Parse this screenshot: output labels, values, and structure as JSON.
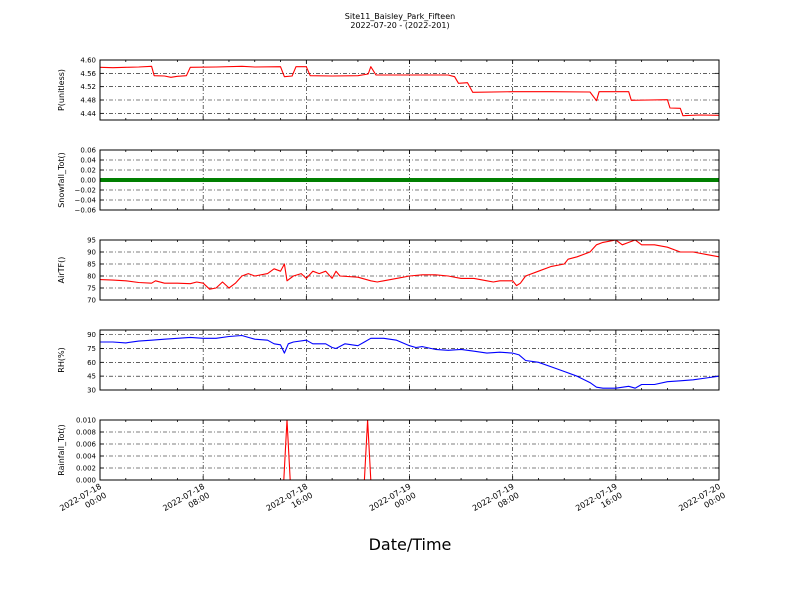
{
  "header": {
    "title": "Site11_Baisley_Park_Fifteen",
    "subtitle": "2022-07-20 - (2022-201)"
  },
  "xlabel": "Date/Time",
  "x_range": [
    "2022-07-18 00:00",
    "2022-07-20 00:00"
  ],
  "x_ticks": [
    {
      "line1": "2022-07-18",
      "line2": "00:00",
      "hour": 0
    },
    {
      "line1": "2022-07-18",
      "line2": "08:00",
      "hour": 8
    },
    {
      "line1": "2022-07-18",
      "line2": "16:00",
      "hour": 16
    },
    {
      "line1": "2022-07-19",
      "line2": "00:00",
      "hour": 24
    },
    {
      "line1": "2022-07-19",
      "line2": "08:00",
      "hour": 32
    },
    {
      "line1": "2022-07-19",
      "line2": "16:00",
      "hour": 40
    },
    {
      "line1": "2022-07-20",
      "line2": "00:00",
      "hour": 48
    }
  ],
  "chart_data": [
    {
      "type": "line",
      "ylabel": "P(unitless)",
      "ylim": [
        4.42,
        4.6
      ],
      "yticks": [
        "4.44",
        "4.48",
        "4.52",
        "4.56",
        "4.60"
      ],
      "ytick_values": [
        4.44,
        4.48,
        4.52,
        4.56,
        4.6
      ],
      "color": "#ff0000",
      "grid": true,
      "points": [
        [
          0,
          4.578
        ],
        [
          1,
          4.577
        ],
        [
          2,
          4.578
        ],
        [
          3,
          4.579
        ],
        [
          4,
          4.581
        ],
        [
          4.2,
          4.553
        ],
        [
          5,
          4.552
        ],
        [
          5.5,
          4.548
        ],
        [
          6,
          4.551
        ],
        [
          6.7,
          4.553
        ],
        [
          7,
          4.578
        ],
        [
          9,
          4.579
        ],
        [
          11,
          4.581
        ],
        [
          12,
          4.579
        ],
        [
          14,
          4.58
        ],
        [
          14.3,
          4.55
        ],
        [
          14.9,
          4.552
        ],
        [
          15.2,
          4.58
        ],
        [
          16,
          4.58
        ],
        [
          16.3,
          4.553
        ],
        [
          18,
          4.552
        ],
        [
          20,
          4.553
        ],
        [
          20.8,
          4.558
        ],
        [
          21,
          4.58
        ],
        [
          21.4,
          4.555
        ],
        [
          24,
          4.555
        ],
        [
          27,
          4.555
        ],
        [
          27.5,
          4.55
        ],
        [
          27.8,
          4.53
        ],
        [
          28.5,
          4.532
        ],
        [
          28.9,
          4.503
        ],
        [
          32,
          4.505
        ],
        [
          35,
          4.505
        ],
        [
          38,
          4.504
        ],
        [
          38.5,
          4.478
        ],
        [
          38.7,
          4.505
        ],
        [
          41,
          4.505
        ],
        [
          41.2,
          4.479
        ],
        [
          44,
          4.481
        ],
        [
          44.2,
          4.456
        ],
        [
          45,
          4.455
        ],
        [
          45.2,
          4.433
        ],
        [
          46.5,
          4.435
        ],
        [
          48,
          4.434
        ]
      ]
    },
    {
      "type": "scatter",
      "ylabel": "Snowfall_Tot()",
      "ylim": [
        -0.06,
        0.06
      ],
      "yticks": [
        "−0.06",
        "−0.04",
        "−0.02",
        "0.00",
        "0.02",
        "0.04",
        "0.06"
      ],
      "ytick_values": [
        -0.06,
        -0.04,
        -0.02,
        0.0,
        0.02,
        0.04,
        0.06
      ],
      "color": "#007f00",
      "grid": true,
      "points": [
        [
          0,
          0
        ],
        [
          48,
          0
        ]
      ]
    },
    {
      "type": "line",
      "ylabel": "AirTF()",
      "ylim": [
        70,
        95
      ],
      "yticks": [
        "70",
        "75",
        "80",
        "85",
        "90",
        "95"
      ],
      "ytick_values": [
        70,
        75,
        80,
        85,
        90,
        95
      ],
      "color": "#ff0000",
      "grid": true,
      "points": [
        [
          0,
          78.5
        ],
        [
          1,
          78.3
        ],
        [
          2,
          78
        ],
        [
          3,
          77.3
        ],
        [
          4,
          77
        ],
        [
          4.3,
          78
        ],
        [
          5,
          77
        ],
        [
          6,
          77
        ],
        [
          7,
          76.8
        ],
        [
          7.5,
          77.5
        ],
        [
          8,
          77
        ],
        [
          8.5,
          74.5
        ],
        [
          9,
          75
        ],
        [
          9.5,
          77.5
        ],
        [
          10,
          75
        ],
        [
          10.5,
          77
        ],
        [
          11,
          80
        ],
        [
          11.5,
          81
        ],
        [
          12,
          80
        ],
        [
          13,
          81
        ],
        [
          13.5,
          83
        ],
        [
          14,
          82
        ],
        [
          14.3,
          85
        ],
        [
          14.5,
          78
        ],
        [
          15,
          80
        ],
        [
          15.6,
          81
        ],
        [
          16,
          79
        ],
        [
          16.5,
          82
        ],
        [
          17,
          81
        ],
        [
          17.5,
          82
        ],
        [
          18,
          79
        ],
        [
          18.3,
          82
        ],
        [
          18.6,
          80
        ],
        [
          20,
          79.5
        ],
        [
          21,
          78
        ],
        [
          21.5,
          77.5
        ],
        [
          22,
          78
        ],
        [
          23,
          79
        ],
        [
          24,
          80
        ],
        [
          25,
          80.5
        ],
        [
          26,
          80.5
        ],
        [
          27,
          80
        ],
        [
          28,
          79
        ],
        [
          29,
          79
        ],
        [
          30,
          78
        ],
        [
          30.5,
          77.5
        ],
        [
          31,
          78
        ],
        [
          32,
          78
        ],
        [
          32.3,
          76
        ],
        [
          32.6,
          77
        ],
        [
          33,
          80
        ],
        [
          34,
          82
        ],
        [
          35,
          84
        ],
        [
          36,
          85
        ],
        [
          36.3,
          87
        ],
        [
          37,
          88
        ],
        [
          38,
          90
        ],
        [
          38.5,
          93
        ],
        [
          39,
          94
        ],
        [
          40,
          95
        ],
        [
          40.5,
          93
        ],
        [
          41,
          94
        ],
        [
          41.5,
          95
        ],
        [
          42,
          93
        ],
        [
          43,
          93
        ],
        [
          44,
          92
        ],
        [
          45,
          90
        ],
        [
          46,
          90
        ],
        [
          47,
          89
        ],
        [
          48,
          88
        ]
      ]
    },
    {
      "type": "line",
      "ylabel": "RH(%)",
      "ylim": [
        30,
        95
      ],
      "yticks": [
        "30",
        "45",
        "60",
        "75",
        "90"
      ],
      "ytick_values": [
        30,
        45,
        60,
        75,
        90
      ],
      "color": "#0000ff",
      "grid": true,
      "points": [
        [
          0,
          82
        ],
        [
          1,
          82
        ],
        [
          2,
          81
        ],
        [
          3,
          83
        ],
        [
          4,
          84
        ],
        [
          5,
          85
        ],
        [
          6,
          86
        ],
        [
          7,
          87
        ],
        [
          8,
          86
        ],
        [
          9,
          86
        ],
        [
          10,
          88
        ],
        [
          11,
          89
        ],
        [
          11.5,
          87
        ],
        [
          12,
          85
        ],
        [
          13,
          84
        ],
        [
          13.5,
          80
        ],
        [
          14,
          79
        ],
        [
          14.3,
          70
        ],
        [
          14.6,
          80
        ],
        [
          15,
          82
        ],
        [
          16,
          84
        ],
        [
          16.5,
          80
        ],
        [
          17,
          80
        ],
        [
          17.5,
          80
        ],
        [
          18,
          76
        ],
        [
          18.3,
          75
        ],
        [
          19,
          80
        ],
        [
          20,
          78
        ],
        [
          20.5,
          82
        ],
        [
          21,
          86
        ],
        [
          22,
          86
        ],
        [
          23,
          84
        ],
        [
          24,
          78
        ],
        [
          24.5,
          76
        ],
        [
          25,
          77
        ],
        [
          26,
          74
        ],
        [
          27,
          73
        ],
        [
          28,
          74
        ],
        [
          29,
          72
        ],
        [
          30,
          70
        ],
        [
          31,
          71
        ],
        [
          32,
          70
        ],
        [
          32.5,
          68
        ],
        [
          33,
          62
        ],
        [
          34,
          60
        ],
        [
          35,
          55
        ],
        [
          36,
          50
        ],
        [
          37,
          45
        ],
        [
          38,
          38
        ],
        [
          38.5,
          33
        ],
        [
          39,
          32
        ],
        [
          40,
          32
        ],
        [
          41,
          34
        ],
        [
          41.5,
          32
        ],
        [
          42,
          36
        ],
        [
          43,
          36
        ],
        [
          44,
          39
        ],
        [
          45,
          40
        ],
        [
          46,
          41
        ],
        [
          47,
          43
        ],
        [
          48,
          45
        ]
      ]
    },
    {
      "type": "line",
      "ylabel": "Rainfall_Tot()",
      "ylim": [
        0,
        0.01
      ],
      "yticks": [
        "0.000",
        "0.002",
        "0.004",
        "0.006",
        "0.008",
        "0.010"
      ],
      "ytick_values": [
        0,
        0.002,
        0.004,
        0.006,
        0.008,
        0.01
      ],
      "color": "#ff0000",
      "grid": true,
      "points": [
        [
          0,
          0
        ],
        [
          14.25,
          0
        ],
        [
          14.5,
          0.01
        ],
        [
          14.75,
          0
        ],
        [
          20.5,
          0
        ],
        [
          20.75,
          0.01
        ],
        [
          21,
          0
        ],
        [
          48,
          0
        ]
      ]
    }
  ]
}
